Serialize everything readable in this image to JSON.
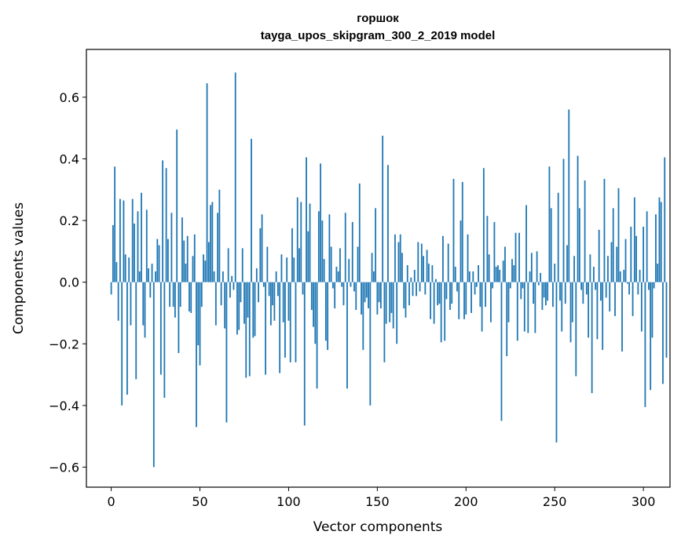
{
  "chart_data": {
    "type": "bar",
    "title": "горшок",
    "subtitle": "tayga_upos_skipgram_300_2_2019 model",
    "xlabel": "Vector components",
    "ylabel": "Components values",
    "xlim": [
      -14,
      315
    ],
    "ylim": [
      -0.665,
      0.755
    ],
    "xticks": [
      0,
      50,
      100,
      150,
      200,
      250,
      300
    ],
    "xtick_labels": [
      "0",
      "50",
      "100",
      "150",
      "200",
      "250",
      "300"
    ],
    "yticks": [
      -0.6,
      -0.4,
      -0.2,
      0.0,
      0.2,
      0.4,
      0.6
    ],
    "ytick_labels": [
      "−0.6",
      "−0.4",
      "−0.2",
      "0.0",
      "0.2",
      "0.4",
      "0.6"
    ],
    "bar_color": "#1f77b4",
    "grid": false,
    "values": [
      -0.04,
      0.185,
      0.375,
      0.065,
      -0.125,
      0.27,
      -0.4,
      0.265,
      0.09,
      -0.365,
      0.08,
      -0.14,
      0.27,
      0.19,
      -0.315,
      0.23,
      0.035,
      0.29,
      -0.14,
      -0.18,
      0.235,
      0.045,
      -0.05,
      0.06,
      -0.6,
      0.035,
      0.14,
      0.12,
      -0.3,
      0.395,
      -0.375,
      0.37,
      0.14,
      -0.08,
      0.225,
      -0.08,
      -0.115,
      0.495,
      -0.23,
      -0.08,
      0.21,
      0.135,
      0.06,
      0.15,
      -0.095,
      -0.1,
      0.085,
      0.155,
      -0.47,
      -0.205,
      -0.27,
      -0.08,
      0.09,
      0.07,
      0.645,
      0.13,
      0.25,
      0.26,
      0.035,
      -0.14,
      0.225,
      0.3,
      -0.075,
      0.035,
      -0.15,
      -0.455,
      0.11,
      -0.05,
      0.02,
      -0.025,
      0.68,
      -0.17,
      -0.155,
      -0.065,
      0.11,
      -0.135,
      -0.31,
      -0.115,
      -0.305,
      0.465,
      -0.18,
      -0.175,
      0.045,
      -0.065,
      0.175,
      0.22,
      -0.015,
      -0.3,
      0.115,
      -0.045,
      -0.14,
      -0.075,
      -0.125,
      0.035,
      -0.045,
      -0.295,
      0.09,
      -0.13,
      -0.245,
      0.08,
      -0.125,
      -0.26,
      0.175,
      0.08,
      -0.26,
      0.275,
      0.11,
      0.26,
      -0.04,
      -0.465,
      0.405,
      0.165,
      0.255,
      -0.09,
      -0.145,
      -0.2,
      -0.345,
      0.23,
      0.385,
      0.2,
      0.075,
      -0.19,
      -0.22,
      0.22,
      0.115,
      -0.02,
      -0.085,
      0.05,
      0.035,
      0.11,
      -0.015,
      -0.075,
      0.225,
      -0.345,
      0.075,
      -0.015,
      0.195,
      -0.03,
      -0.09,
      0.115,
      0.32,
      -0.105,
      -0.22,
      -0.065,
      -0.05,
      -0.085,
      -0.4,
      0.095,
      0.035,
      0.24,
      -0.105,
      -0.065,
      -0.085,
      0.475,
      -0.26,
      -0.135,
      0.38,
      -0.13,
      -0.1,
      -0.15,
      0.155,
      -0.2,
      0.13,
      0.155,
      0.095,
      -0.085,
      -0.115,
      0.055,
      -0.075,
      0.015,
      -0.045,
      0.04,
      -0.045,
      0.13,
      -0.03,
      0.125,
      0.085,
      -0.04,
      0.105,
      0.06,
      -0.12,
      0.055,
      -0.135,
      0.01,
      -0.075,
      -0.07,
      -0.195,
      0.15,
      -0.19,
      -0.055,
      0.125,
      -0.09,
      -0.07,
      0.335,
      0.05,
      -0.03,
      -0.12,
      0.2,
      0.325,
      -0.12,
      -0.105,
      0.155,
      0.035,
      -0.1,
      0.035,
      -0.04,
      -0.015,
      0.055,
      -0.08,
      -0.16,
      0.37,
      -0.08,
      0.215,
      0.09,
      -0.13,
      -0.02,
      0.195,
      0.05,
      0.055,
      0.04,
      -0.45,
      0.07,
      0.115,
      -0.24,
      -0.13,
      -0.02,
      0.075,
      0.055,
      0.16,
      -0.19,
      0.16,
      -0.055,
      -0.02,
      -0.16,
      0.25,
      -0.165,
      0.035,
      0.095,
      -0.07,
      -0.165,
      0.1,
      -0.01,
      0.03,
      -0.09,
      -0.05,
      -0.075,
      -0.06,
      0.375,
      0.24,
      -0.08,
      0.06,
      -0.52,
      0.29,
      -0.06,
      -0.16,
      0.4,
      -0.07,
      0.12,
      0.56,
      -0.195,
      -0.13,
      0.085,
      -0.305,
      0.41,
      0.24,
      -0.025,
      -0.07,
      0.33,
      -0.04,
      -0.18,
      0.09,
      -0.36,
      0.05,
      -0.025,
      -0.185,
      0.17,
      -0.06,
      -0.22,
      0.335,
      -0.05,
      0.085,
      -0.095,
      0.13,
      0.24,
      -0.11,
      0.115,
      0.305,
      0.035,
      -0.225,
      0.04,
      0.14,
      -0.005,
      -0.04,
      0.18,
      -0.11,
      0.275,
      0.15,
      -0.04,
      0.04,
      -0.16,
      0.18,
      -0.405,
      0.23,
      -0.025,
      -0.35,
      -0.18,
      -0.02,
      0.22,
      0.06,
      0.275,
      0.26,
      -0.33,
      0.405,
      -0.245
    ]
  }
}
